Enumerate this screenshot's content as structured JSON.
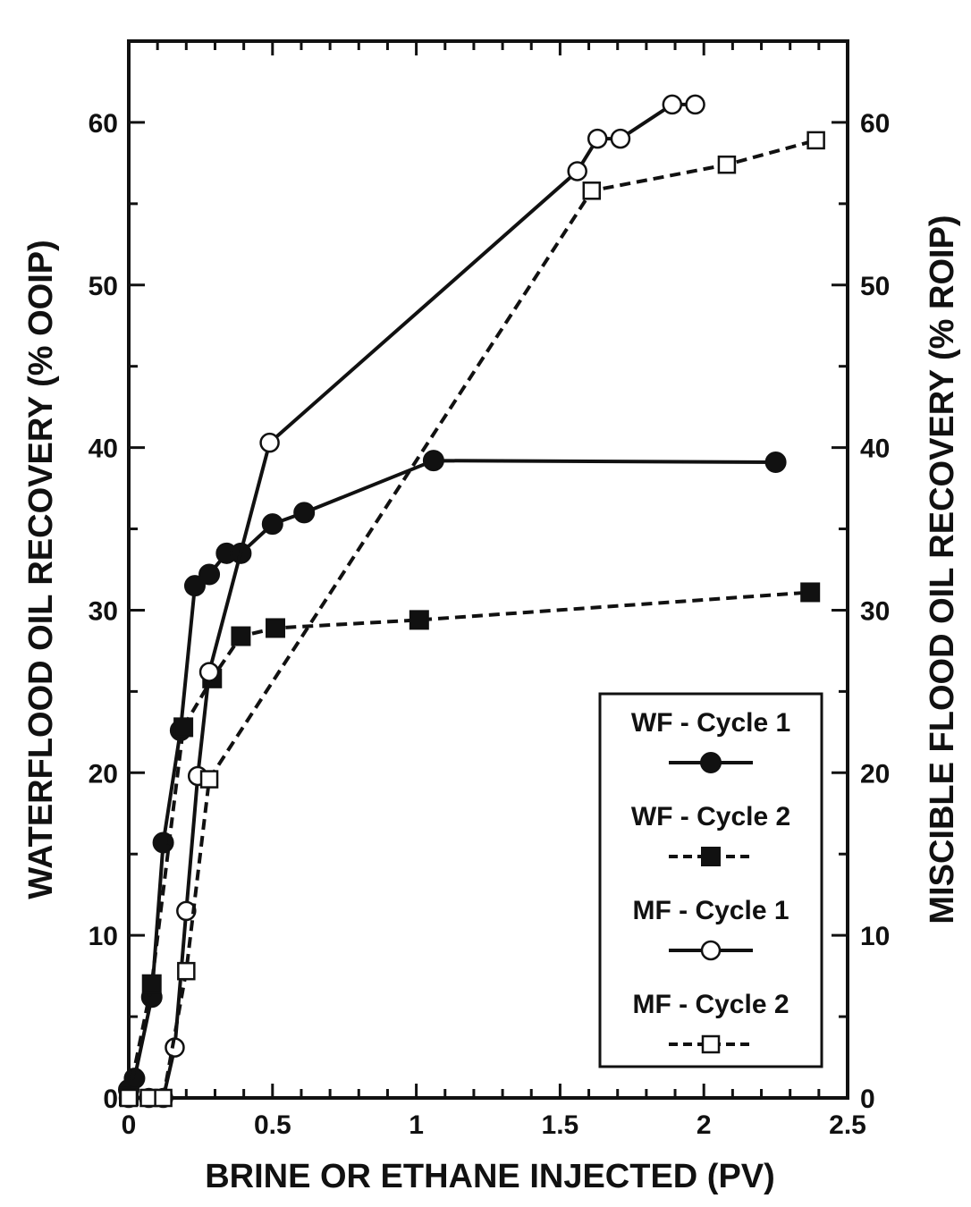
{
  "chart_data": {
    "type": "line",
    "xlabel": "BRINE OR ETHANE INJECTED (PV)",
    "ylabel": "WATERFLOOD OIL RECOVERY (% OOIP)",
    "y2label": "MISCIBLE FLOOD OIL RECOVERY (% ROIP)",
    "xlim": [
      0,
      2.5
    ],
    "ylim": [
      0,
      65
    ],
    "y2lim": [
      0,
      65
    ],
    "x_ticks": [
      "0",
      "0.5",
      "1",
      "1.5",
      "2",
      "2.5"
    ],
    "y_ticks": [
      "0",
      "10",
      "20",
      "30",
      "40",
      "50",
      "60"
    ],
    "y2_ticks": [
      "0",
      "10",
      "20",
      "30",
      "40",
      "50",
      "60"
    ],
    "legend_position": "bottom-right",
    "grid": false,
    "series": [
      {
        "name": "WF - Cycle 1",
        "line": "solid",
        "marker": "filled-circle",
        "x": [
          0.0,
          0.02,
          0.08,
          0.12,
          0.18,
          0.23,
          0.28,
          0.34,
          0.39,
          0.5,
          0.61,
          1.06,
          2.25
        ],
        "y": [
          0.5,
          1.2,
          6.2,
          15.7,
          22.6,
          31.5,
          32.2,
          33.5,
          33.5,
          35.3,
          36.0,
          39.2,
          39.1
        ]
      },
      {
        "name": "WF - Cycle 2",
        "line": "dashed",
        "marker": "filled-square",
        "x": [
          0.0,
          0.08,
          0.19,
          0.29,
          0.39,
          0.51,
          1.01,
          2.37
        ],
        "y": [
          0.1,
          7.0,
          22.8,
          25.8,
          28.4,
          28.9,
          29.4,
          31.1
        ]
      },
      {
        "name": "MF - Cycle 1",
        "line": "solid",
        "marker": "open-circle",
        "x": [
          0.0,
          0.07,
          0.12,
          0.16,
          0.2,
          0.24,
          0.28,
          0.49,
          1.56,
          1.63,
          1.71,
          1.89,
          1.97
        ],
        "y": [
          0.0,
          0.0,
          0.0,
          3.1,
          11.5,
          19.8,
          26.2,
          40.3,
          57.0,
          59.0,
          59.0,
          61.1,
          61.1
        ]
      },
      {
        "name": "MF - Cycle 2",
        "line": "dashed",
        "marker": "open-square",
        "x": [
          0.0,
          0.07,
          0.12,
          0.2,
          0.28,
          1.61,
          2.08,
          2.39
        ],
        "y": [
          0.0,
          0.0,
          0.0,
          7.8,
          19.6,
          55.8,
          57.4,
          58.9
        ]
      }
    ]
  }
}
